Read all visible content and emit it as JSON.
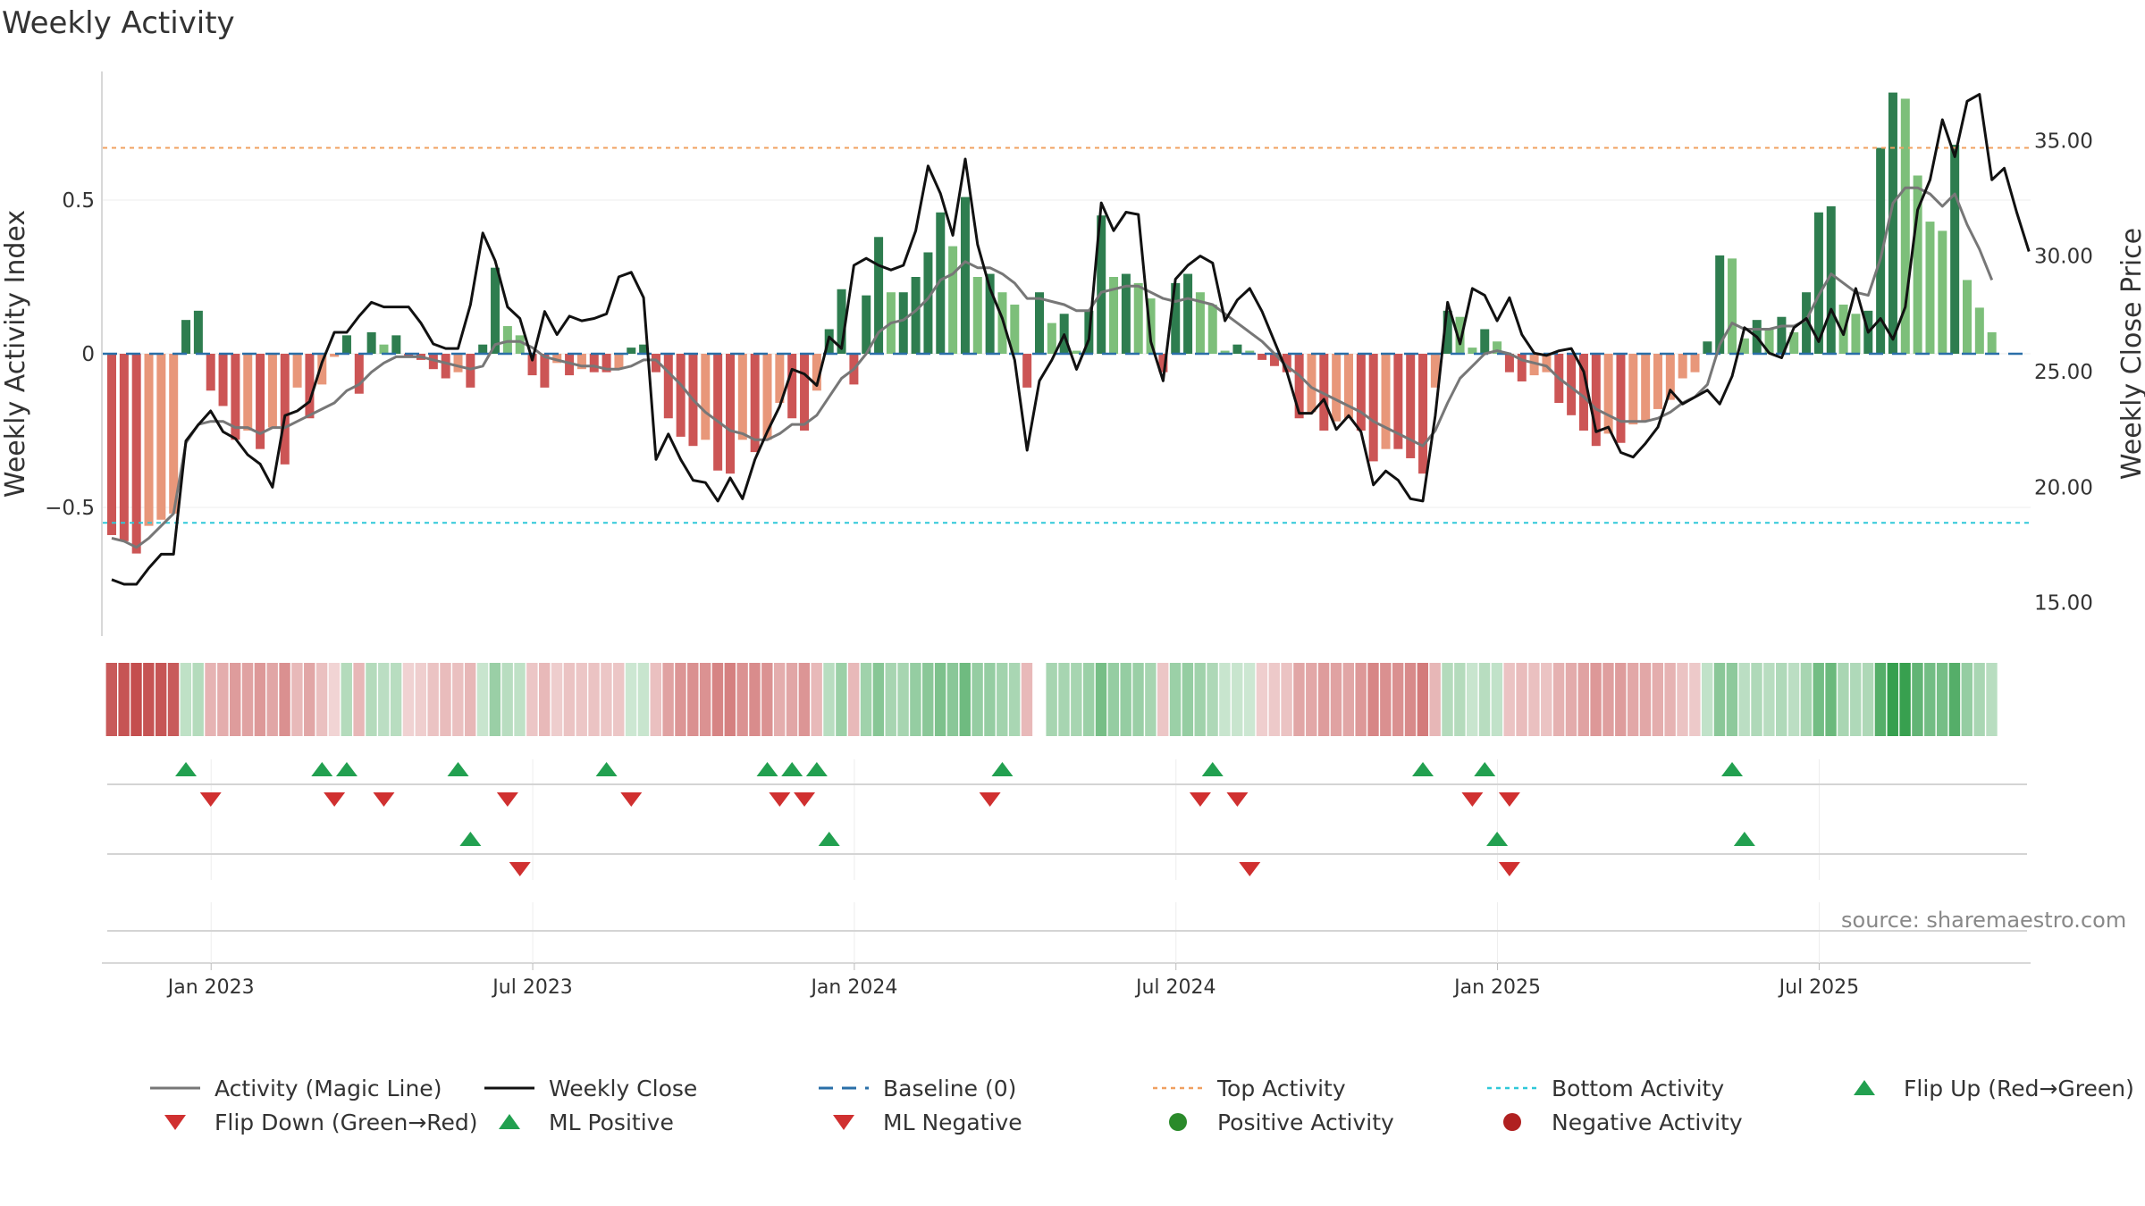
{
  "chart_data": {
    "type": "bar",
    "title": "Weekly Activity",
    "ylabel": "Weekly Activity Index",
    "y2label": "Weekly Close Price",
    "ylim": [
      -0.92,
      0.92
    ],
    "y2lim": [
      13.4,
      38.0
    ],
    "yticks": [
      0.5,
      0,
      -0.5
    ],
    "ytick_labels": [
      "0.5",
      "0",
      "−0.5"
    ],
    "y2ticks": [
      35,
      30,
      25,
      20,
      15
    ],
    "y2tick_labels": [
      "35.00",
      "30.00",
      "25.00",
      "20.00",
      "15.00"
    ],
    "top_activity": 0.67,
    "bottom_activity": -0.55,
    "baseline": 0,
    "x_tick_weeks": [
      8,
      34,
      60,
      86,
      112,
      138
    ],
    "x_tick_labels": [
      "Jan 2023",
      "Jul 2023",
      "Jan 2024",
      "Jul 2024",
      "Jan 2025",
      "Jul 2025"
    ],
    "source": "source: sharemaestro.com",
    "activity": [
      -0.59,
      -0.61,
      -0.65,
      -0.56,
      -0.54,
      -0.52,
      0.11,
      0.14,
      -0.12,
      -0.17,
      -0.28,
      -0.25,
      -0.31,
      -0.24,
      -0.36,
      -0.11,
      -0.21,
      -0.1,
      -0.01,
      0.06,
      -0.13,
      0.07,
      0.03,
      0.06,
      -0.01,
      -0.02,
      -0.05,
      -0.08,
      -0.06,
      -0.11,
      0.03,
      0.28,
      0.09,
      0.06,
      -0.07,
      -0.11,
      -0.03,
      -0.07,
      -0.05,
      -0.06,
      -0.06,
      -0.05,
      0.02,
      0.03,
      -0.06,
      -0.21,
      -0.27,
      -0.3,
      -0.28,
      -0.38,
      -0.39,
      -0.28,
      -0.32,
      -0.28,
      -0.16,
      -0.21,
      -0.25,
      -0.12,
      0.08,
      0.21,
      -0.1,
      0.19,
      0.38,
      0.2,
      0.2,
      0.25,
      0.33,
      0.46,
      0.35,
      0.51,
      0.25,
      0.26,
      0.2,
      0.16,
      -0.11,
      0.2,
      0.1,
      0.13,
      0.01,
      0.14,
      0.45,
      0.25,
      0.26,
      0.23,
      0.18,
      -0.06,
      0.23,
      0.26,
      0.2,
      0.16,
      0.01,
      0.03,
      0.01,
      -0.02,
      -0.04,
      -0.06,
      -0.21,
      -0.19,
      -0.25,
      -0.22,
      -0.21,
      -0.25,
      -0.35,
      -0.31,
      -0.31,
      -0.34,
      -0.39,
      -0.11,
      0.14,
      0.12,
      0.02,
      0.08,
      0.04,
      -0.06,
      -0.09,
      -0.07,
      -0.06,
      -0.16,
      -0.2,
      -0.25,
      -0.3,
      -0.26,
      -0.29,
      -0.23,
      -0.22,
      -0.18,
      -0.15,
      -0.08,
      -0.06,
      0.04,
      0.32,
      0.31,
      0.05,
      0.11,
      0.08,
      0.12,
      0.07,
      0.2,
      0.46,
      0.48,
      0.16,
      0.13,
      0.14,
      0.67,
      0.85,
      0.83,
      0.58,
      0.43,
      0.4,
      0.68,
      0.24,
      0.15,
      0.07
    ],
    "magic_line": [
      -0.6,
      -0.61,
      -0.63,
      -0.6,
      -0.56,
      -0.52,
      -0.29,
      -0.23,
      -0.22,
      -0.22,
      -0.24,
      -0.24,
      -0.26,
      -0.24,
      -0.24,
      -0.22,
      -0.2,
      -0.18,
      -0.16,
      -0.12,
      -0.1,
      -0.06,
      -0.03,
      -0.01,
      -0.01,
      -0.01,
      -0.02,
      -0.03,
      -0.04,
      -0.05,
      -0.04,
      0.03,
      0.04,
      0.04,
      0.02,
      -0.01,
      -0.02,
      -0.03,
      -0.04,
      -0.04,
      -0.05,
      -0.05,
      -0.04,
      -0.02,
      -0.02,
      -0.06,
      -0.1,
      -0.15,
      -0.19,
      -0.22,
      -0.25,
      -0.26,
      -0.28,
      -0.28,
      -0.26,
      -0.23,
      -0.23,
      -0.2,
      -0.14,
      -0.08,
      -0.05,
      0.0,
      0.07,
      0.1,
      0.11,
      0.14,
      0.18,
      0.24,
      0.26,
      0.3,
      0.28,
      0.28,
      0.26,
      0.23,
      0.18,
      0.18,
      0.17,
      0.16,
      0.14,
      0.14,
      0.2,
      0.21,
      0.22,
      0.22,
      0.2,
      0.18,
      0.17,
      0.18,
      0.17,
      0.16,
      0.13,
      0.1,
      0.07,
      0.04,
      0.0,
      -0.04,
      -0.07,
      -0.11,
      -0.13,
      -0.15,
      -0.17,
      -0.19,
      -0.22,
      -0.24,
      -0.26,
      -0.28,
      -0.3,
      -0.25,
      -0.16,
      -0.08,
      -0.04,
      0.0,
      0.01,
      0.0,
      -0.02,
      -0.03,
      -0.04,
      -0.08,
      -0.11,
      -0.14,
      -0.18,
      -0.2,
      -0.22,
      -0.22,
      -0.22,
      -0.21,
      -0.19,
      -0.16,
      -0.14,
      -0.1,
      0.03,
      0.1,
      0.08,
      0.08,
      0.08,
      0.09,
      0.09,
      0.11,
      0.19,
      0.26,
      0.23,
      0.2,
      0.19,
      0.31,
      0.49,
      0.54,
      0.54,
      0.52,
      0.48,
      0.52,
      0.42,
      0.34,
      0.24
    ],
    "weekly_close": [
      16.0,
      15.8,
      15.8,
      16.5,
      17.1,
      17.1,
      22.0,
      22.7,
      23.3,
      22.4,
      22.1,
      21.4,
      21.0,
      20.0,
      23.1,
      23.3,
      23.7,
      25.4,
      26.7,
      26.7,
      27.4,
      28.0,
      27.8,
      27.8,
      27.8,
      27.1,
      26.2,
      26.0,
      26.0,
      27.9,
      31.0,
      29.8,
      27.8,
      27.3,
      25.5,
      27.6,
      26.6,
      27.4,
      27.2,
      27.3,
      27.5,
      29.1,
      29.3,
      28.2,
      21.2,
      22.3,
      21.2,
      20.3,
      20.2,
      19.4,
      20.4,
      19.5,
      21.2,
      22.4,
      23.5,
      25.1,
      24.9,
      24.4,
      26.5,
      26.0,
      29.6,
      29.9,
      29.6,
      29.4,
      29.6,
      31.1,
      33.9,
      32.7,
      30.9,
      34.2,
      30.5,
      28.6,
      27.3,
      25.5,
      21.6,
      24.6,
      25.5,
      26.6,
      25.1,
      26.4,
      32.3,
      31.1,
      31.9,
      31.8,
      26.3,
      24.6,
      29.0,
      29.6,
      30.0,
      29.7,
      27.2,
      28.1,
      28.6,
      27.6,
      26.3,
      25.0,
      23.2,
      23.2,
      23.8,
      22.5,
      23.1,
      22.4,
      20.1,
      20.7,
      20.3,
      19.5,
      19.4,
      23.1,
      28.0,
      26.2,
      28.6,
      28.3,
      27.2,
      28.2,
      26.6,
      25.8,
      25.7,
      25.9,
      26.0,
      25.0,
      22.4,
      22.6,
      21.5,
      21.3,
      21.9,
      22.6,
      24.2,
      23.6,
      23.9,
      24.2,
      23.6,
      24.8,
      26.9,
      26.5,
      25.8,
      25.6,
      26.9,
      27.3,
      26.3,
      27.7,
      26.6,
      28.6,
      26.7,
      27.3,
      26.4,
      27.8,
      32.0,
      33.3,
      35.9,
      34.3,
      36.7,
      37.0,
      33.3,
      33.8,
      31.9,
      30.2
    ],
    "heat_values": [
      -0.42,
      -0.44,
      -0.46,
      -0.44,
      -0.43,
      -0.41,
      0.06,
      0.09,
      -0.12,
      -0.14,
      -0.2,
      -0.18,
      -0.21,
      -0.17,
      -0.24,
      -0.1,
      -0.17,
      -0.08,
      -0.01,
      0.09,
      -0.11,
      0.09,
      0.07,
      0.08,
      -0.02,
      -0.03,
      -0.07,
      -0.09,
      -0.08,
      -0.11,
      0.03,
      0.17,
      0.08,
      0.06,
      -0.06,
      -0.1,
      -0.04,
      -0.07,
      -0.06,
      -0.07,
      -0.06,
      -0.06,
      0.02,
      0.03,
      -0.08,
      -0.18,
      -0.22,
      -0.24,
      -0.23,
      -0.28,
      -0.29,
      -0.23,
      -0.25,
      -0.23,
      -0.14,
      -0.17,
      -0.22,
      -0.1,
      0.08,
      0.16,
      -0.1,
      0.15,
      0.22,
      0.13,
      0.13,
      0.18,
      0.21,
      0.25,
      0.21,
      0.29,
      0.18,
      0.18,
      0.14,
      0.12,
      -0.1,
      null,
      0.13,
      0.13,
      0.13,
      0.16,
      0.27,
      0.18,
      0.18,
      0.17,
      0.13,
      -0.06,
      0.16,
      0.18,
      0.15,
      0.11,
      0.03,
      0.03,
      0.02,
      -0.03,
      -0.05,
      -0.07,
      -0.17,
      -0.16,
      -0.2,
      -0.18,
      -0.17,
      -0.21,
      -0.27,
      -0.24,
      -0.24,
      -0.26,
      -0.31,
      -0.11,
      0.09,
      0.09,
      0.03,
      0.08,
      0.05,
      -0.07,
      -0.09,
      -0.08,
      -0.07,
      -0.13,
      -0.15,
      -0.18,
      -0.21,
      -0.19,
      -0.2,
      -0.16,
      -0.16,
      -0.14,
      -0.12,
      -0.07,
      -0.05,
      0.05,
      0.21,
      0.2,
      0.07,
      0.1,
      0.08,
      0.1,
      0.07,
      0.13,
      0.28,
      0.3,
      0.12,
      0.1,
      0.11,
      0.37,
      0.46,
      0.45,
      0.33,
      0.28,
      0.27,
      0.37,
      0.18,
      0.12,
      0.08
    ],
    "flip_up_weeks": [
      6,
      17,
      19,
      28,
      40,
      53,
      55,
      57,
      72,
      89,
      106,
      111,
      131
    ],
    "flip_down_weeks": [
      8,
      18,
      22,
      32,
      42,
      54,
      56,
      71,
      88,
      91,
      110,
      113
    ],
    "ml_positive_weeks": [
      29,
      58,
      112,
      132
    ],
    "ml_negative_weeks": [
      33,
      92,
      113
    ],
    "n_weeks": 157
  },
  "legend": [
    {
      "label": "Activity (Magic Line)",
      "key": "magic"
    },
    {
      "label": "Weekly Close",
      "key": "close"
    },
    {
      "label": "Baseline (0)",
      "key": "baseline"
    },
    {
      "label": "Top Activity",
      "key": "top"
    },
    {
      "label": "Bottom Activity",
      "key": "bottom"
    },
    {
      "label": "Flip Up (Red→Green)",
      "key": "flipup"
    },
    {
      "label": "Flip Down (Green→Red)",
      "key": "flipdown"
    },
    {
      "label": "ML Positive",
      "key": "mlpos"
    },
    {
      "label": "ML Negative",
      "key": "mlneg"
    },
    {
      "label": "Positive Activity",
      "key": "posdot"
    },
    {
      "label": "Negative Activity",
      "key": "negdot"
    }
  ],
  "colors": {
    "green_strong": "#2e7d4f",
    "green_light": "#7dbf7a",
    "red_strong": "#cc5555",
    "red_light": "#e8977a",
    "magic_line": "#777777",
    "close_line": "#111111",
    "baseline": "#2a6fa8",
    "top_line": "#f0a060",
    "bottom_line": "#2ec8d8",
    "triangle_up": "#22a050",
    "triangle_down": "#d03030",
    "dot_green": "#2a8a2a",
    "dot_red": "#b02020"
  }
}
